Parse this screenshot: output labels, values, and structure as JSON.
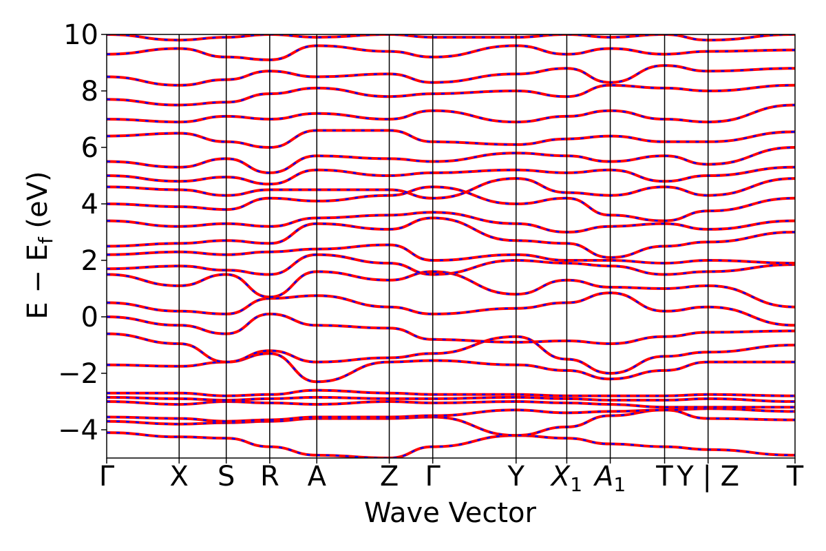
{
  "chart_data": {
    "type": "line",
    "title": "",
    "xlabel": "Wave Vector",
    "ylabel_parts": {
      "main": "E − E",
      "sub": "f",
      "unit": " (eV)"
    },
    "ylim": [
      -5,
      10
    ],
    "yticks": [
      -4,
      -2,
      0,
      2,
      4,
      6,
      8,
      10
    ],
    "ytick_labels": [
      "−4",
      "−2",
      "0",
      "2",
      "4",
      "6",
      "8",
      "10"
    ],
    "grid": false,
    "legend": "none",
    "series_styles": [
      {
        "name": "",
        "color": "#ff0000",
        "style": "solid"
      },
      {
        "name": "",
        "color": "#0000ff",
        "style": "dashed"
      }
    ],
    "kpath": {
      "segment_lengths": [
        1.0,
        0.65,
        0.6,
        0.65,
        1.0,
        0.6,
        1.15,
        0.7,
        0.6,
        0.75,
        0.6,
        1.2
      ],
      "vertical_lines_at_boundaries": true,
      "labels": [
        {
          "boundary": 0,
          "text": "Γ"
        },
        {
          "boundary": 1,
          "text": "X"
        },
        {
          "boundary": 2,
          "text": "S"
        },
        {
          "boundary": 3,
          "text": "R"
        },
        {
          "boundary": 4,
          "text": "A"
        },
        {
          "boundary": 5,
          "text": "Z"
        },
        {
          "boundary": 6,
          "text": "Γ"
        },
        {
          "boundary": 7,
          "text": "Y"
        },
        {
          "boundary": 8,
          "text": "X",
          "sub": "1"
        },
        {
          "boundary": 9,
          "text": "A",
          "sub": "1"
        },
        {
          "boundary": 10,
          "text": "T"
        },
        {
          "boundary": 11,
          "text": "Y | Z"
        },
        {
          "boundary": 12,
          "text": "T"
        }
      ]
    },
    "bands": [
      [
        -4.1,
        -4.25,
        -4.3,
        -4.6,
        -4.9,
        -5.0,
        -4.6,
        -4.2,
        -4.3,
        -4.5,
        -4.6,
        -4.7,
        -4.9
      ],
      [
        -3.7,
        -3.8,
        -3.75,
        -3.7,
        -3.6,
        -3.6,
        -3.55,
        -4.2,
        -3.9,
        -3.5,
        -3.3,
        -3.6,
        -3.65
      ],
      [
        -3.55,
        -3.6,
        -3.7,
        -3.65,
        -3.55,
        -3.55,
        -3.5,
        -3.3,
        -3.4,
        -3.35,
        -3.3,
        -3.25,
        -3.35
      ],
      [
        -3.0,
        -3.1,
        -3.0,
        -3.05,
        -3.1,
        -3.0,
        -3.05,
        -3.0,
        -3.05,
        -3.1,
        -3.2,
        -3.2,
        -3.2
      ],
      [
        -2.85,
        -2.9,
        -2.95,
        -2.9,
        -2.85,
        -2.9,
        -2.9,
        -2.85,
        -2.9,
        -2.95,
        -2.95,
        -2.9,
        -3.0
      ],
      [
        -2.7,
        -2.7,
        -2.8,
        -2.75,
        -2.6,
        -2.7,
        -2.75,
        -2.75,
        -2.8,
        -2.8,
        -2.8,
        -2.75,
        -2.8
      ],
      [
        -1.7,
        -1.75,
        -1.6,
        -1.3,
        -2.3,
        -1.6,
        -1.55,
        -1.7,
        -1.9,
        -2.2,
        -1.9,
        -1.6,
        -1.6
      ],
      [
        -0.6,
        -0.95,
        -1.6,
        -1.2,
        -1.6,
        -1.45,
        -1.3,
        -0.7,
        -1.5,
        -2.0,
        -1.4,
        -1.25,
        -1.0
      ],
      [
        0.0,
        -0.3,
        -0.6,
        0.1,
        -0.3,
        -0.4,
        -0.8,
        -0.9,
        -0.85,
        -0.95,
        -0.7,
        -0.55,
        -0.5
      ],
      [
        0.5,
        0.2,
        0.1,
        0.65,
        0.75,
        0.35,
        0.1,
        0.3,
        0.5,
        0.85,
        0.2,
        0.35,
        -0.3
      ],
      [
        1.5,
        1.1,
        1.5,
        0.7,
        1.6,
        1.3,
        1.6,
        0.8,
        1.3,
        1.05,
        1.0,
        1.1,
        0.35
      ],
      [
        1.7,
        1.8,
        1.65,
        1.5,
        2.2,
        1.9,
        1.5,
        2.0,
        1.9,
        1.8,
        1.5,
        1.6,
        1.85
      ],
      [
        2.2,
        2.3,
        2.2,
        2.3,
        2.4,
        2.55,
        2.0,
        2.2,
        2.0,
        2.0,
        1.9,
        2.0,
        1.9
      ],
      [
        2.5,
        2.6,
        2.7,
        2.6,
        3.3,
        3.1,
        3.5,
        2.7,
        2.6,
        2.1,
        2.5,
        2.65,
        3.0
      ],
      [
        3.4,
        3.2,
        3.3,
        3.2,
        3.5,
        3.6,
        3.7,
        3.3,
        3.0,
        3.2,
        3.3,
        3.1,
        3.4
      ],
      [
        4.0,
        3.9,
        3.8,
        4.2,
        4.1,
        4.3,
        4.6,
        4.0,
        4.2,
        3.6,
        3.4,
        3.75,
        4.2
      ],
      [
        4.6,
        4.5,
        4.3,
        4.5,
        4.5,
        4.5,
        4.2,
        4.9,
        4.4,
        4.3,
        4.6,
        4.3,
        4.9
      ],
      [
        5.0,
        4.8,
        4.95,
        4.7,
        5.2,
        5.0,
        5.1,
        5.2,
        5.1,
        5.2,
        4.8,
        5.0,
        5.3
      ],
      [
        5.5,
        5.3,
        5.6,
        5.1,
        5.7,
        5.6,
        5.5,
        5.8,
        5.7,
        5.5,
        5.7,
        5.4,
        6.0
      ],
      [
        6.4,
        6.5,
        6.2,
        6.0,
        6.6,
        6.6,
        6.2,
        6.1,
        6.3,
        6.4,
        6.2,
        6.2,
        6.55
      ],
      [
        7.0,
        6.9,
        7.1,
        7.0,
        7.2,
        7.0,
        7.3,
        6.9,
        7.1,
        7.3,
        7.0,
        6.9,
        7.5
      ],
      [
        7.7,
        7.5,
        7.6,
        7.9,
        8.1,
        7.8,
        7.9,
        8.0,
        7.8,
        8.2,
        8.1,
        8.0,
        8.2
      ],
      [
        8.5,
        8.2,
        8.4,
        8.7,
        8.5,
        8.6,
        8.3,
        8.6,
        8.8,
        8.3,
        8.9,
        8.7,
        8.8
      ],
      [
        9.3,
        9.5,
        9.2,
        9.1,
        9.6,
        9.4,
        9.2,
        9.6,
        9.3,
        9.5,
        9.3,
        9.4,
        9.45
      ],
      [
        10.0,
        9.8,
        9.9,
        10.0,
        9.9,
        10.0,
        9.9,
        9.9,
        10.0,
        9.9,
        10.0,
        9.8,
        10.0
      ]
    ]
  }
}
